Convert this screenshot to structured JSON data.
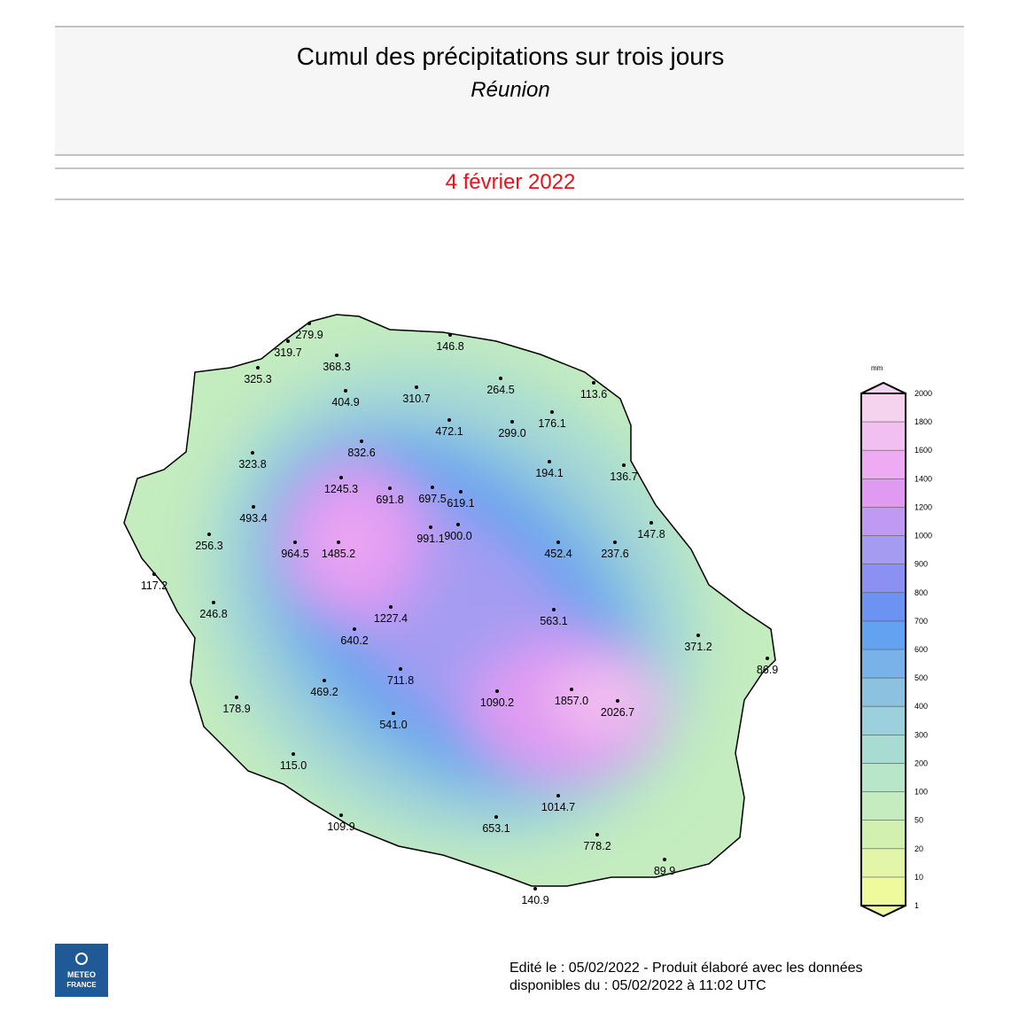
{
  "header": {
    "title": "Cumul des précipitations sur trois jours",
    "subtitle": "Réunion",
    "date": "4 février 2022"
  },
  "stations": [
    "279.9",
    "319.7",
    "146.8",
    "368.3",
    "325.3",
    "264.5",
    "113.6",
    "310.7",
    "404.9",
    "176.1",
    "472.1",
    "299.0",
    "832.6",
    "323.8",
    "194.1",
    "136.7",
    "1245.3",
    "691.8",
    "697.5",
    "619.1",
    "493.4",
    "147.8",
    "991.1",
    "900.0",
    "256.3",
    "964.5",
    "1485.2",
    "452.4",
    "237.6",
    "117.2",
    "246.8",
    "1227.4",
    "563.1",
    "640.2",
    "371.2",
    "86.9",
    "711.8",
    "469.2",
    "1090.2",
    "1857.0",
    "2026.7",
    "178.9",
    "541.0",
    "115.0",
    "1014.7",
    "109.9",
    "653.1",
    "778.2",
    "89.9",
    "140.9"
  ],
  "legend": {
    "unit": "mm",
    "ticks": [
      1,
      10,
      20,
      50,
      100,
      200,
      300,
      400,
      500,
      600,
      700,
      800,
      900,
      1000,
      1200,
      1400,
      1600,
      1800,
      2000
    ],
    "colors": [
      "#eefa9c",
      "#e2f5a8",
      "#d2f0b0",
      "#c4ecbf",
      "#b8e6c8",
      "#a8dcd3",
      "#9cd0dc",
      "#8cc2e0",
      "#78b2e8",
      "#62a2f0",
      "#6c92f2",
      "#8c90f2",
      "#a59cf2",
      "#c09af2",
      "#e09af2",
      "#eeaaf2",
      "#f2c0f0",
      "#f5d2ee"
    ]
  },
  "footer": {
    "line1": "Edité le : 05/02/2022 - Produit élaboré avec les données",
    "line2": "disponibles du : 05/02/2022 à 11:02 UTC"
  },
  "logo": {
    "line1": "METEO",
    "line2": "FRANCE"
  }
}
